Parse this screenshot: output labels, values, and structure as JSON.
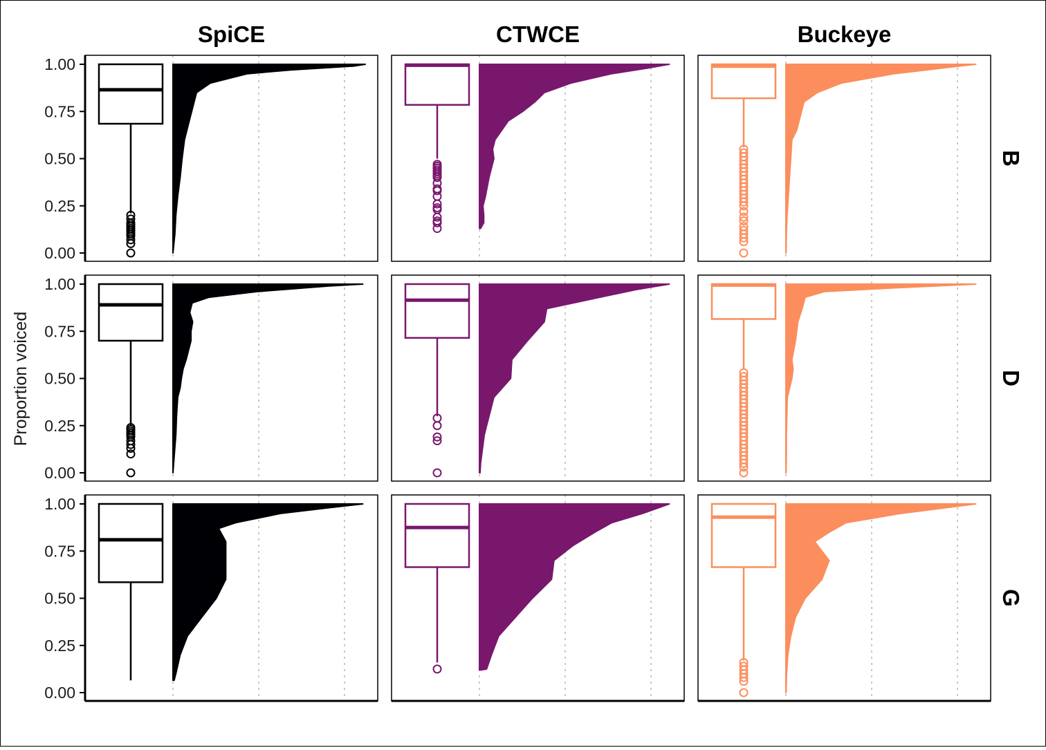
{
  "chart_data": {
    "type": "box-violin-facet",
    "ylabel": "Proportion voiced",
    "xlabel": "",
    "ylim": [
      0,
      1
    ],
    "yticks": [
      "0.00",
      "0.25",
      "0.50",
      "0.75",
      "1.00"
    ],
    "ytick_values": [
      0,
      0.25,
      0.5,
      0.75,
      1.0
    ],
    "grid": "vertical dotted",
    "columns": [
      "SpiCE",
      "CTWCE",
      "Buckeye"
    ],
    "rows": [
      "B",
      "D",
      "G"
    ],
    "colors": {
      "SpiCE": "#000004",
      "CTWCE": "#79176d",
      "Buckeye": "#fb8e5c"
    },
    "panels": [
      {
        "corpus": "SpiCE",
        "stop": "B",
        "box": {
          "q1": 0.685,
          "median": 0.865,
          "q3": 1.0,
          "whisker_low": 0.21,
          "whisker_high": 1.0
        },
        "outliers": [
          0.2,
          0.18,
          0.16,
          0.15,
          0.14,
          0.13,
          0.12,
          0.11,
          0.1,
          0.09,
          0.07,
          0.05,
          0.0
        ],
        "density": [
          [
            0.0,
            0.0
          ],
          [
            0.1,
            0.08
          ],
          [
            0.2,
            0.12
          ],
          [
            0.3,
            0.2
          ],
          [
            0.4,
            0.3
          ],
          [
            0.5,
            0.38
          ],
          [
            0.6,
            0.48
          ],
          [
            0.7,
            0.68
          ],
          [
            0.75,
            0.78
          ],
          [
            0.8,
            0.88
          ],
          [
            0.85,
            0.98
          ],
          [
            0.9,
            1.55
          ],
          [
            0.95,
            3.1
          ],
          [
            0.97,
            4.9
          ],
          [
            0.99,
            7.5
          ],
          [
            1.0,
            8.0
          ]
        ]
      },
      {
        "corpus": "CTWCE",
        "stop": "B",
        "box": {
          "q1": 0.785,
          "median": 0.995,
          "q3": 1.0,
          "whisker_low": 0.5,
          "whisker_high": 1.0
        },
        "outliers": [
          0.47,
          0.46,
          0.45,
          0.44,
          0.43,
          0.42,
          0.41,
          0.4,
          0.37,
          0.34,
          0.33,
          0.3,
          0.26,
          0.24,
          0.23,
          0.19,
          0.17,
          0.16,
          0.13
        ],
        "density": [
          [
            0.13,
            0.05
          ],
          [
            0.16,
            0.18
          ],
          [
            0.2,
            0.18
          ],
          [
            0.25,
            0.15
          ],
          [
            0.3,
            0.25
          ],
          [
            0.4,
            0.4
          ],
          [
            0.5,
            0.6
          ],
          [
            0.55,
            0.55
          ],
          [
            0.6,
            0.65
          ],
          [
            0.7,
            1.2
          ],
          [
            0.75,
            1.8
          ],
          [
            0.8,
            2.3
          ],
          [
            0.85,
            2.7
          ],
          [
            0.9,
            3.8
          ],
          [
            0.95,
            5.5
          ],
          [
            0.98,
            7.0
          ],
          [
            1.0,
            7.9
          ]
        ]
      },
      {
        "corpus": "Buckeye",
        "stop": "B",
        "box": {
          "q1": 0.82,
          "median": 0.99,
          "q3": 1.0,
          "whisker_low": 0.56,
          "whisker_high": 1.0
        },
        "outliers": [
          0.55,
          0.53,
          0.51,
          0.49,
          0.47,
          0.45,
          0.43,
          0.41,
          0.39,
          0.37,
          0.35,
          0.33,
          0.31,
          0.29,
          0.27,
          0.25,
          0.22,
          0.19,
          0.17,
          0.14,
          0.12,
          0.1,
          0.08,
          0.06,
          0.0
        ],
        "density": [
          [
            0.0,
            0.01
          ],
          [
            0.1,
            0.02
          ],
          [
            0.2,
            0.05
          ],
          [
            0.3,
            0.1
          ],
          [
            0.4,
            0.15
          ],
          [
            0.5,
            0.2
          ],
          [
            0.6,
            0.25
          ],
          [
            0.65,
            0.45
          ],
          [
            0.7,
            0.55
          ],
          [
            0.8,
            0.75
          ],
          [
            0.85,
            1.3
          ],
          [
            0.9,
            2.3
          ],
          [
            0.95,
            4.5
          ],
          [
            0.98,
            6.5
          ],
          [
            1.0,
            7.9
          ]
        ]
      },
      {
        "corpus": "SpiCE",
        "stop": "D",
        "box": {
          "q1": 0.7,
          "median": 0.89,
          "q3": 1.0,
          "whisker_low": 0.25,
          "whisker_high": 1.0
        },
        "outliers": [
          0.24,
          0.23,
          0.22,
          0.21,
          0.2,
          0.19,
          0.17,
          0.15,
          0.13,
          0.1,
          0.0
        ],
        "density": [
          [
            0.0,
            0.0
          ],
          [
            0.1,
            0.06
          ],
          [
            0.2,
            0.12
          ],
          [
            0.3,
            0.15
          ],
          [
            0.4,
            0.2
          ],
          [
            0.45,
            0.3
          ],
          [
            0.5,
            0.35
          ],
          [
            0.55,
            0.42
          ],
          [
            0.6,
            0.55
          ],
          [
            0.65,
            0.65
          ],
          [
            0.7,
            0.75
          ],
          [
            0.75,
            0.75
          ],
          [
            0.8,
            0.82
          ],
          [
            0.85,
            0.7
          ],
          [
            0.9,
            0.8
          ],
          [
            0.93,
            1.5
          ],
          [
            0.96,
            3.5
          ],
          [
            0.99,
            6.5
          ],
          [
            1.0,
            7.9
          ]
        ]
      },
      {
        "corpus": "CTWCE",
        "stop": "D",
        "box": {
          "q1": 0.715,
          "median": 0.915,
          "q3": 1.0,
          "whisker_low": 0.3,
          "whisker_high": 1.0
        },
        "outliers": [
          0.29,
          0.25,
          0.19,
          0.17,
          0.0
        ],
        "density": [
          [
            0.0,
            0.03
          ],
          [
            0.05,
            0.05
          ],
          [
            0.1,
            0.1
          ],
          [
            0.2,
            0.2
          ],
          [
            0.25,
            0.3
          ],
          [
            0.3,
            0.4
          ],
          [
            0.4,
            0.6
          ],
          [
            0.5,
            1.3
          ],
          [
            0.6,
            1.35
          ],
          [
            0.7,
            2.0
          ],
          [
            0.8,
            2.7
          ],
          [
            0.87,
            2.8
          ],
          [
            0.93,
            5.0
          ],
          [
            0.97,
            6.5
          ],
          [
            1.0,
            7.9
          ]
        ]
      },
      {
        "corpus": "Buckeye",
        "stop": "D",
        "box": {
          "q1": 0.815,
          "median": 0.995,
          "q3": 1.0,
          "whisker_low": 0.55,
          "whisker_high": 1.0
        },
        "outliers": [
          0.53,
          0.51,
          0.49,
          0.47,
          0.45,
          0.43,
          0.41,
          0.39,
          0.37,
          0.35,
          0.33,
          0.31,
          0.29,
          0.27,
          0.25,
          0.23,
          0.21,
          0.19,
          0.17,
          0.15,
          0.13,
          0.11,
          0.09,
          0.07,
          0.05,
          0.03,
          0.0
        ],
        "density": [
          [
            0.0,
            0.01
          ],
          [
            0.1,
            0.02
          ],
          [
            0.2,
            0.02
          ],
          [
            0.3,
            0.04
          ],
          [
            0.4,
            0.06
          ],
          [
            0.5,
            0.25
          ],
          [
            0.55,
            0.3
          ],
          [
            0.6,
            0.25
          ],
          [
            0.7,
            0.4
          ],
          [
            0.8,
            0.5
          ],
          [
            0.88,
            0.7
          ],
          [
            0.93,
            0.8
          ],
          [
            0.96,
            1.6
          ],
          [
            0.98,
            4.5
          ],
          [
            1.0,
            7.9
          ]
        ]
      },
      {
        "corpus": "SpiCE",
        "stop": "G",
        "box": {
          "q1": 0.585,
          "median": 0.81,
          "q3": 1.0,
          "whisker_low": 0.065,
          "whisker_high": 1.0
        },
        "outliers": [],
        "density": [
          [
            0.065,
            0.05
          ],
          [
            0.1,
            0.12
          ],
          [
            0.2,
            0.3
          ],
          [
            0.3,
            0.6
          ],
          [
            0.4,
            1.2
          ],
          [
            0.5,
            1.8
          ],
          [
            0.6,
            2.2
          ],
          [
            0.7,
            2.2
          ],
          [
            0.8,
            2.2
          ],
          [
            0.87,
            1.9
          ],
          [
            0.9,
            2.6
          ],
          [
            0.95,
            4.5
          ],
          [
            0.98,
            6.5
          ],
          [
            1.0,
            7.9
          ]
        ]
      },
      {
        "corpus": "CTWCE",
        "stop": "G",
        "box": {
          "q1": 0.665,
          "median": 0.875,
          "q3": 1.0,
          "whisker_low": 0.16,
          "whisker_high": 1.0
        },
        "outliers": [
          0.125
        ],
        "density": [
          [
            0.12,
            0.1
          ],
          [
            0.125,
            0.3
          ],
          [
            0.2,
            0.5
          ],
          [
            0.3,
            0.8
          ],
          [
            0.4,
            1.5
          ],
          [
            0.5,
            2.2
          ],
          [
            0.6,
            3.0
          ],
          [
            0.7,
            3.1
          ],
          [
            0.78,
            3.9
          ],
          [
            0.85,
            4.8
          ],
          [
            0.9,
            5.5
          ],
          [
            0.95,
            6.8
          ],
          [
            1.0,
            7.9
          ]
        ]
      },
      {
        "corpus": "Buckeye",
        "stop": "G",
        "box": {
          "q1": 0.665,
          "median": 0.93,
          "q3": 1.0,
          "whisker_low": 0.17,
          "whisker_high": 1.0
        },
        "outliers": [
          0.16,
          0.14,
          0.12,
          0.1,
          0.08,
          0.06,
          0.0
        ],
        "density": [
          [
            0.0,
            0.01
          ],
          [
            0.1,
            0.03
          ],
          [
            0.2,
            0.08
          ],
          [
            0.3,
            0.2
          ],
          [
            0.4,
            0.4
          ],
          [
            0.5,
            0.8
          ],
          [
            0.6,
            1.5
          ],
          [
            0.7,
            1.8
          ],
          [
            0.75,
            1.5
          ],
          [
            0.8,
            1.2
          ],
          [
            0.85,
            1.8
          ],
          [
            0.9,
            2.5
          ],
          [
            0.95,
            4.8
          ],
          [
            1.0,
            7.9
          ]
        ]
      }
    ]
  }
}
